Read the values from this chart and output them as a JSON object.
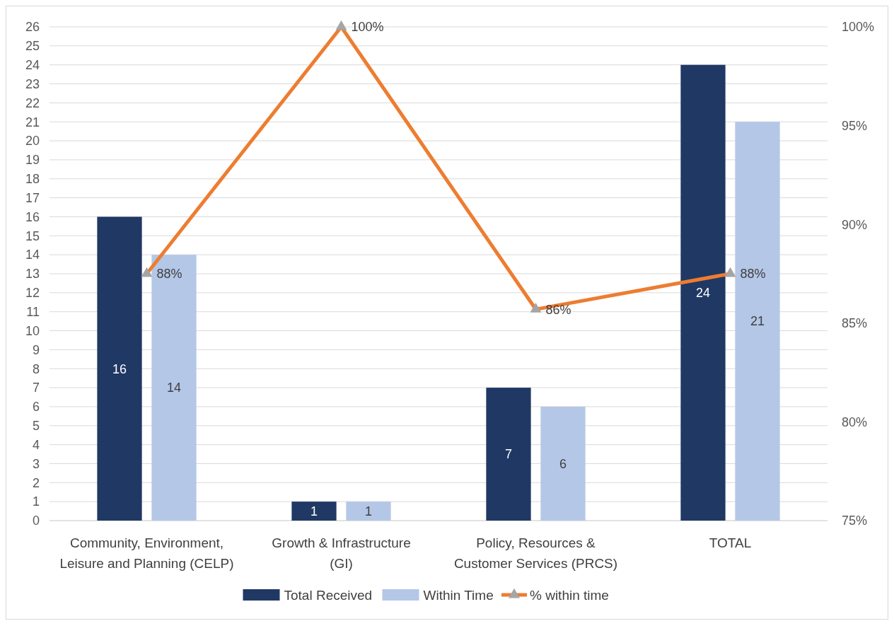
{
  "chart_data": {
    "type": "bar",
    "categories": [
      "Community, Environment, Leisure and Planning (CELP)",
      "Growth & Infrastructure (GI)",
      "Policy, Resources & Customer Services (PRCS)",
      "TOTAL"
    ],
    "series": [
      {
        "name": "Total Received",
        "color": "#203864",
        "values": [
          16,
          1,
          7,
          24
        ]
      },
      {
        "name": "Within Time",
        "color": "#b4c7e7",
        "values": [
          14,
          1,
          6,
          21
        ]
      },
      {
        "name": "% within time",
        "type": "line",
        "axis": "y2",
        "color": "#ed7d31",
        "values": [
          87.5,
          100,
          85.7,
          87.5
        ],
        "value_labels": [
          "88%",
          "100%",
          "86%",
          "88%"
        ]
      }
    ],
    "ylim": [
      0,
      26
    ],
    "yticks": [
      0,
      1,
      2,
      3,
      4,
      5,
      6,
      7,
      8,
      9,
      10,
      11,
      12,
      13,
      14,
      15,
      16,
      17,
      18,
      19,
      20,
      21,
      22,
      23,
      24,
      25,
      26
    ],
    "y2lim": [
      75,
      100
    ],
    "y2ticks": [
      {
        "value": 75,
        "label": "75%"
      },
      {
        "value": 80,
        "label": "80%"
      },
      {
        "value": 85,
        "label": "85%"
      },
      {
        "value": 90,
        "label": "90%"
      },
      {
        "value": 95,
        "label": "95%"
      },
      {
        "value": 100,
        "label": "100%"
      }
    ],
    "data_labels": true,
    "grid": "y",
    "legend": "bottom",
    "marker": "triangle",
    "line_style": "solid"
  }
}
